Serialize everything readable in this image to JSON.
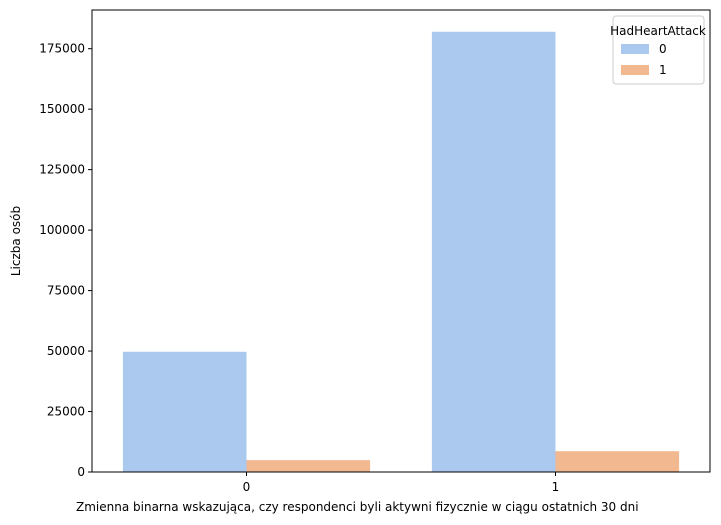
{
  "chart_data": {
    "type": "bar",
    "title": "",
    "xlabel": "Zmienna binarna wskazująca, czy respondenci byli aktywni fizycznie w ciągu ostatnich 30 dni",
    "ylabel": "Liczba osób",
    "categories": [
      "0",
      "1"
    ],
    "series": [
      {
        "name": "0",
        "color": "#abc9ef",
        "values": [
          49700,
          182000
        ]
      },
      {
        "name": "1",
        "color": "#f2b890",
        "values": [
          4900,
          8600
        ]
      }
    ],
    "ylim": [
      0,
      191000
    ],
    "yticks": [
      0,
      25000,
      50000,
      75000,
      100000,
      125000,
      150000,
      175000
    ],
    "grid": false,
    "legend": {
      "title": "HadHeartAttack",
      "placement": "top-right"
    }
  }
}
